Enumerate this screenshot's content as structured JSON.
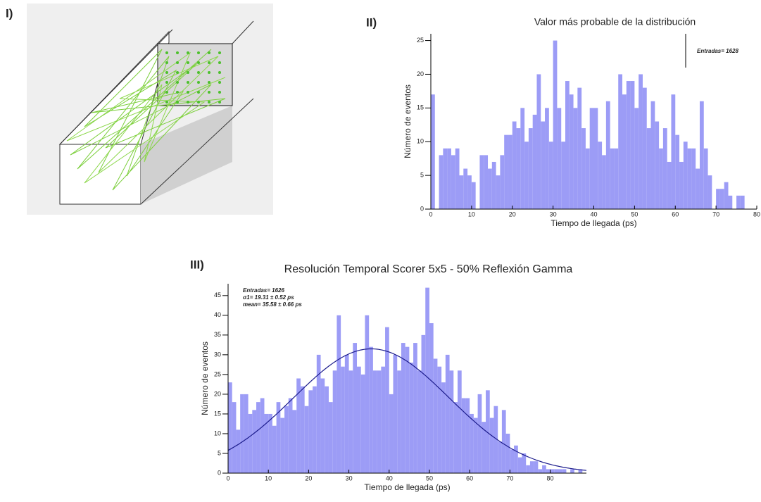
{
  "panel_labels": [
    "I)",
    "II)",
    "III)"
  ],
  "chart_data": [
    {
      "type": "histogram",
      "title": "Valor más probable de la distribución",
      "x_label": "Tiempo de llegada (ps)",
      "y_label": "Número de eventos",
      "annotations": [
        "Entradas= 1628"
      ],
      "color": "#9c9cf6",
      "bins": [
        0,
        1,
        2,
        3,
        4,
        5,
        6,
        7,
        8,
        9,
        10,
        11,
        12,
        13,
        14,
        15,
        16,
        17,
        18,
        19,
        20,
        21,
        22,
        23,
        24,
        25,
        26,
        27,
        28,
        29,
        30,
        31,
        32,
        33,
        34,
        35,
        36,
        37,
        38,
        39,
        40,
        41,
        42,
        43,
        44,
        45,
        46,
        47,
        48,
        49,
        50,
        51,
        52,
        53,
        54,
        55,
        56,
        57,
        58,
        59,
        60,
        61,
        62,
        63,
        64,
        65,
        66,
        67,
        68,
        69,
        70,
        71,
        72,
        73,
        74,
        75,
        76,
        77
      ],
      "values": [
        17,
        0,
        8,
        9,
        9,
        8,
        9,
        5,
        6,
        5,
        4,
        0,
        8,
        8,
        6,
        7,
        5,
        8,
        11,
        11,
        13,
        12,
        15,
        10,
        12,
        14,
        20,
        13,
        15,
        10,
        25,
        15,
        10,
        19,
        17,
        15,
        18,
        12,
        9,
        15,
        15,
        10,
        8,
        16,
        9,
        9,
        20,
        17,
        19,
        19,
        15,
        20,
        18,
        12,
        16,
        13,
        9,
        12,
        7,
        17,
        11,
        7,
        10,
        9,
        9,
        6,
        16,
        9,
        5,
        0,
        3,
        3,
        4,
        2,
        0,
        2,
        2
      ],
      "xlim": [
        0,
        80
      ],
      "xticks": [
        0,
        10,
        20,
        30,
        40,
        50,
        60,
        70,
        80
      ],
      "ylim": [
        0,
        26
      ],
      "yticks": [
        0,
        5,
        10,
        15,
        20,
        25
      ]
    },
    {
      "type": "histogram",
      "title": "Resolución Temporal Scorer 5x5 - 50% Reflexión Gamma",
      "x_label": "Tiempo de llegada (ps)",
      "y_label": "Número de eventos",
      "annotations": [
        "Entradas= 1626",
        "σ1= 19.31 ± 0.52 ps",
        "mean= 35.58  ± 0.66 ps"
      ],
      "color": "#9c9cf6",
      "fit": {
        "color": "#1c1c8c",
        "amplitude": 31.5,
        "mean": 35.58,
        "sigma": 19.31
      },
      "bins": [
        0,
        1,
        2,
        3,
        4,
        5,
        6,
        7,
        8,
        9,
        10,
        11,
        12,
        13,
        14,
        15,
        16,
        17,
        18,
        19,
        20,
        21,
        22,
        23,
        24,
        25,
        26,
        27,
        28,
        29,
        30,
        31,
        32,
        33,
        34,
        35,
        36,
        37,
        38,
        39,
        40,
        41,
        42,
        43,
        44,
        45,
        46,
        47,
        48,
        49,
        50,
        51,
        52,
        53,
        54,
        55,
        56,
        57,
        58,
        59,
        60,
        61,
        62,
        63,
        64,
        65,
        66,
        67,
        68,
        69,
        70,
        71,
        72,
        73,
        74,
        75,
        76,
        77,
        78,
        79,
        80,
        81,
        82,
        83,
        84,
        85,
        86,
        87,
        88
      ],
      "values": [
        23,
        18,
        11,
        20,
        20,
        15,
        16,
        18,
        19,
        15,
        15,
        12,
        18,
        14,
        17,
        19,
        16,
        24,
        22,
        17,
        21,
        22,
        30,
        24,
        22,
        18,
        26,
        40,
        27,
        30,
        26,
        33,
        27,
        25,
        40,
        32,
        26,
        26,
        27,
        37,
        20,
        30,
        26,
        33,
        32,
        28,
        33,
        26,
        35,
        47,
        38,
        29,
        27,
        23,
        30,
        26,
        18,
        26,
        19,
        19,
        15,
        14,
        20,
        13,
        21,
        14,
        17,
        8,
        16,
        10,
        6,
        7,
        4,
        5,
        2,
        3,
        3,
        1,
        2,
        1,
        1,
        1,
        1,
        1,
        0,
        1,
        0,
        1
      ],
      "xlim": [
        0,
        89
      ],
      "xticks": [
        0,
        10,
        20,
        30,
        40,
        50,
        60,
        70,
        80
      ],
      "ylim": [
        0,
        48
      ],
      "yticks": [
        0,
        5,
        10,
        15,
        20,
        25,
        30,
        35,
        40,
        45
      ]
    }
  ]
}
